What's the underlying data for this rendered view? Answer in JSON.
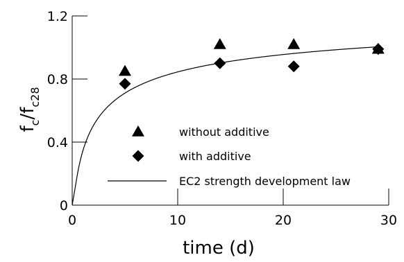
{
  "chart_data": {
    "type": "scatter",
    "xlabel": "time (d)",
    "ylabel": {
      "base": "f",
      "sub1": "c",
      "slash": "/",
      "base2": "f",
      "sub2": "c28"
    },
    "xlim": [
      0,
      30
    ],
    "ylim": [
      0,
      1.2
    ],
    "x_ticks": [
      0,
      10,
      20,
      30
    ],
    "x_tick_labels": [
      "0",
      "10",
      "20",
      "30"
    ],
    "y_ticks": [
      0,
      0.4,
      0.8,
      1.2
    ],
    "y_tick_labels": [
      "0",
      "0.4",
      "0.8",
      "1.2"
    ],
    "grid": false,
    "legend_position": "inside-lower-center",
    "series": [
      {
        "name": "without additive",
        "kind": "scatter",
        "marker": "triangle",
        "color": "#000000",
        "x": [
          5,
          14,
          21,
          29
        ],
        "y": [
          0.85,
          1.02,
          1.02,
          0.99
        ]
      },
      {
        "name": "with additive",
        "kind": "scatter",
        "marker": "diamond",
        "color": "#000000",
        "x": [
          5,
          14,
          21,
          29
        ],
        "y": [
          0.77,
          0.9,
          0.88,
          0.99
        ]
      },
      {
        "name": "EC2 strength development law",
        "kind": "line",
        "color": "#000000",
        "formula": "exp(0.25*(1-sqrt(28/t)))",
        "x_range": [
          0.5,
          29
        ]
      }
    ]
  }
}
